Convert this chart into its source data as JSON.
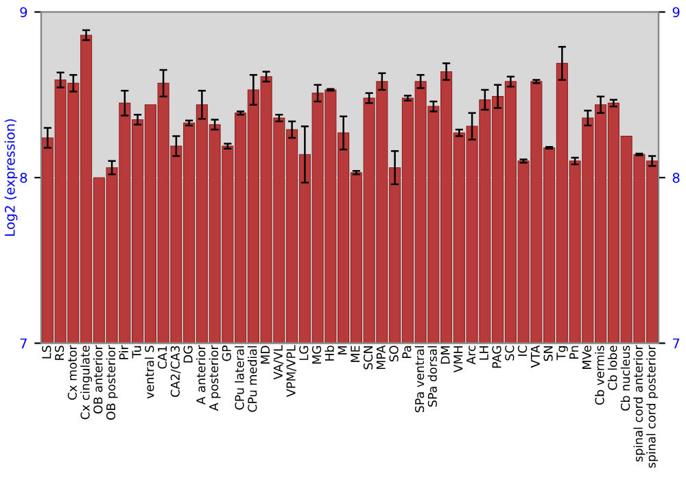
{
  "chart_data": {
    "type": "bar",
    "ylabel": "Log2 (expression)",
    "categories": [
      "LS",
      "RS",
      "Cx motor",
      "Cx cingulate",
      "OB anterior",
      "OB posterior",
      "Pir",
      "Tu",
      "ventral S",
      "CA1",
      "CA2/CA3",
      "DG",
      "A anterior",
      "A posterior",
      "GP",
      "CPu lateral",
      "CPu medial",
      "MD",
      "VA/VL",
      "VPM/VPL",
      "LG",
      "MG",
      "Hb",
      "M",
      "ME",
      "SCN",
      "MPA",
      "SO",
      "Pa",
      "SPa ventral",
      "SPa dorsal",
      "DM",
      "VMH",
      "Arc",
      "LH",
      "PAG",
      "SC",
      "IC",
      "VTA",
      "SN",
      "Tg",
      "Pn",
      "MVe",
      "Cb vermis",
      "Cb lobe",
      "Cb nucleus",
      "spinal cord anterior",
      "spinal cord posterior"
    ],
    "values": [
      8.24,
      8.59,
      8.57,
      8.86,
      8.0,
      8.06,
      8.45,
      8.35,
      8.44,
      8.57,
      8.19,
      8.33,
      8.44,
      8.32,
      8.19,
      8.39,
      8.53,
      8.61,
      8.36,
      8.29,
      8.14,
      8.51,
      8.53,
      8.27,
      8.03,
      8.48,
      8.58,
      8.06,
      8.48,
      8.58,
      8.43,
      8.64,
      8.27,
      8.31,
      8.47,
      8.49,
      8.58,
      8.1,
      8.58,
      8.18,
      8.69,
      8.1,
      8.36,
      8.44,
      8.45,
      8.25,
      8.14,
      8.1
    ],
    "errors": [
      0.06,
      0.045,
      0.05,
      0.03,
      null,
      0.04,
      0.075,
      0.03,
      null,
      0.08,
      0.06,
      0.015,
      0.085,
      0.03,
      0.015,
      0.01,
      0.09,
      0.03,
      0.02,
      0.05,
      0.17,
      0.05,
      0.005,
      0.1,
      0.01,
      0.03,
      0.05,
      0.1,
      0.015,
      0.04,
      0.03,
      0.05,
      0.02,
      0.08,
      0.06,
      0.07,
      0.03,
      0.01,
      0.01,
      0.005,
      0.1,
      0.02,
      0.045,
      0.05,
      0.02,
      null,
      0.005,
      0.03
    ],
    "color": "#b83a3a",
    "ylim": [
      7,
      9
    ],
    "yticks": [
      7,
      8,
      9
    ],
    "y2lim": [
      7,
      9
    ],
    "y2ticks": [
      7,
      8,
      9
    ],
    "grid": "y"
  }
}
